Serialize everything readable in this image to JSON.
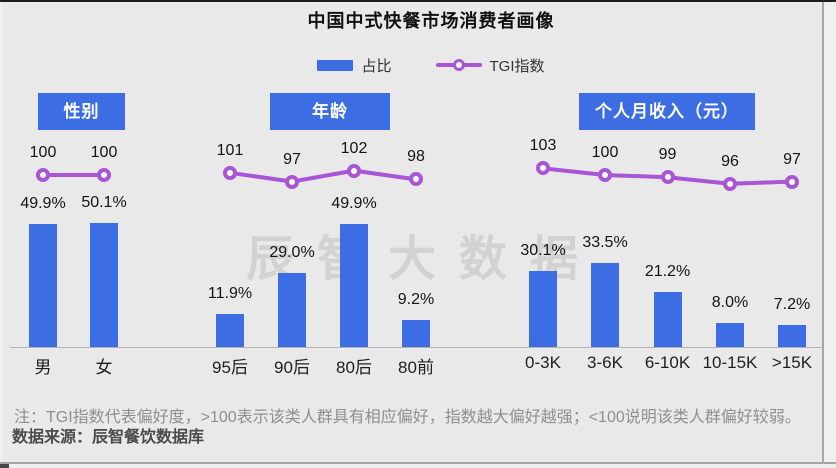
{
  "title": "中国中式快餐市场消费者画像",
  "legend": {
    "share_label": "占比",
    "tgi_label": "TGI指数"
  },
  "watermark": "辰智大数据",
  "footnote": "注：TGI指数代表偏好度，>100表示该类人群具有相应偏好，指数越大偏好越强；<100说明该类人群偏好较弱。",
  "source": "数据来源：辰智餐饮数据库",
  "colors": {
    "bar": "#3D6DE2",
    "tgi_line": "#A855D6",
    "header_bg": "#3D6DE2",
    "background": "#E9E9E9",
    "watermark": "#D2D2D2"
  },
  "chart_data": [
    {
      "type": "bar+line",
      "title": "性别",
      "categories": [
        "男",
        "女"
      ],
      "series": [
        {
          "name": "占比",
          "unit": "%",
          "values": [
            49.9,
            50.1
          ]
        },
        {
          "name": "TGI指数",
          "values": [
            100,
            100
          ]
        }
      ],
      "legend_position": "top",
      "value_labels": true,
      "grid": false
    },
    {
      "type": "bar+line",
      "title": "年龄",
      "categories": [
        "95后",
        "90后",
        "80后",
        "80前"
      ],
      "series": [
        {
          "name": "占比",
          "unit": "%",
          "values": [
            11.9,
            29.0,
            49.9,
            9.2
          ]
        },
        {
          "name": "TGI指数",
          "values": [
            101,
            97,
            102,
            98
          ]
        }
      ],
      "legend_position": "top",
      "value_labels": true,
      "grid": false
    },
    {
      "type": "bar+line",
      "title": "个人月收入（元）",
      "categories": [
        "0-3K",
        "3-6K",
        "6-10K",
        "10-15K",
        ">15K"
      ],
      "series": [
        {
          "name": "占比",
          "unit": "%",
          "values": [
            30.1,
            33.5,
            21.2,
            8.0,
            7.2
          ]
        },
        {
          "name": "TGI指数",
          "values": [
            103,
            100,
            99,
            96,
            97
          ]
        }
      ],
      "legend_position": "top",
      "value_labels": true,
      "grid": false
    }
  ]
}
